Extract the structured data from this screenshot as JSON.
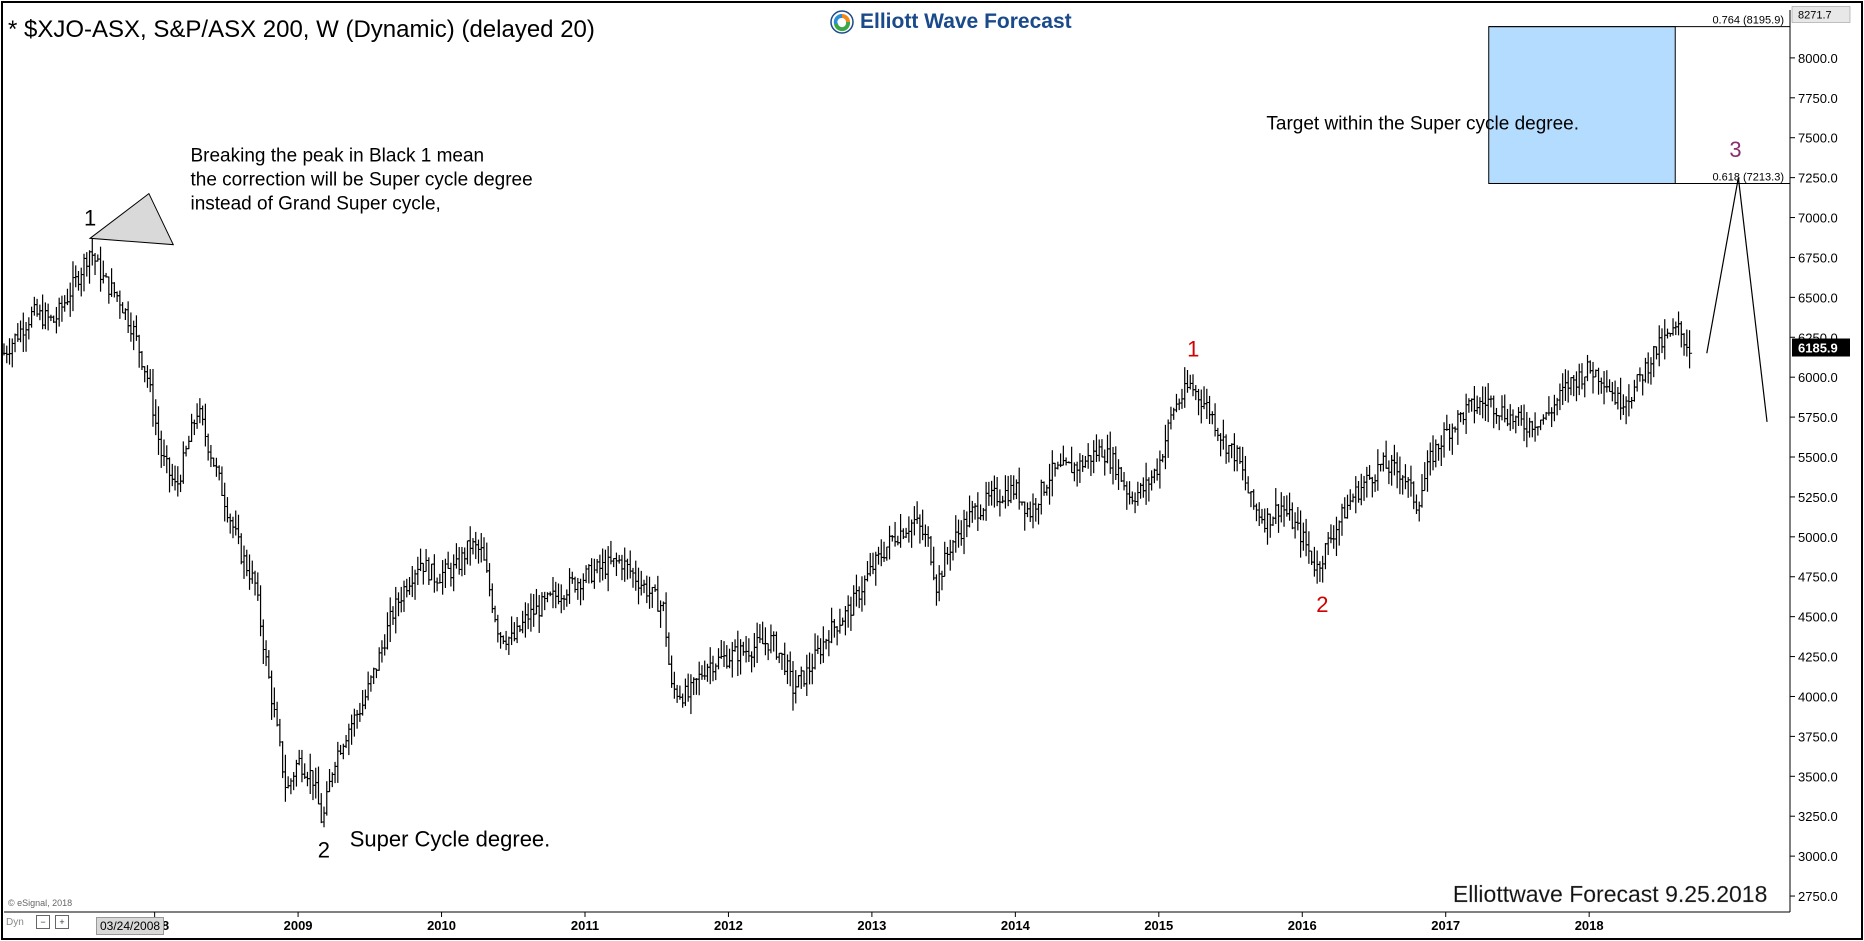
{
  "header": {
    "title": "* $XJO-ASX, S&P/ASX 200, W (Dynamic) (delayed 20)",
    "logo_text": "Elliott Wave Forecast"
  },
  "footer": {
    "copyright": "© eSignal, 2018",
    "dyn_label": "Dyn",
    "crosshair_date": "03/24/2008",
    "watermark": "Elliottwave Forecast 9.25.2018"
  },
  "colors": {
    "background": "#ffffff",
    "bars": "#000000",
    "red_labels": "#d40000",
    "purple_label": "#8b2c6f",
    "target_box": "#b4dcff",
    "logo_blue": "#1a4a8a"
  },
  "chart_data": {
    "type": "ohlc",
    "title": "* $XJO-ASX, S&P/ASX 200, W (Dynamic) (delayed 20)",
    "xlabel": "",
    "ylabel": "",
    "x_tick_labels": [
      "2008",
      "2009",
      "2010",
      "2011",
      "2012",
      "2013",
      "2014",
      "2015",
      "2016",
      "2017",
      "2018"
    ],
    "y_tick_labels": [
      "2750.0",
      "3000.0",
      "3250.0",
      "3500.0",
      "3750.0",
      "4000.0",
      "4250.0",
      "4500.0",
      "4750.0",
      "5000.0",
      "5250.0",
      "5500.0",
      "5750.0",
      "6000.0",
      "6250.0",
      "6500.0",
      "6750.0",
      "7000.0",
      "7250.0",
      "7500.0",
      "7750.0",
      "8000.0"
    ],
    "ylim": [
      2650,
      8300
    ],
    "xlim": [
      2006.95,
      2019.4
    ],
    "grid": false,
    "last_price": "6185.9",
    "top_price": "8271.7",
    "price_path": [
      [
        2006.95,
        6150
      ],
      [
        2007.15,
        6400
      ],
      [
        2007.3,
        6350
      ],
      [
        2007.45,
        6600
      ],
      [
        2007.55,
        6800
      ],
      [
        2007.65,
        6600
      ],
      [
        2007.75,
        6500
      ],
      [
        2007.85,
        6300
      ],
      [
        2007.95,
        6000
      ],
      [
        2008.05,
        5500
      ],
      [
        2008.15,
        5300
      ],
      [
        2008.3,
        5800
      ],
      [
        2008.4,
        5500
      ],
      [
        2008.5,
        5200
      ],
      [
        2008.6,
        4900
      ],
      [
        2008.7,
        4700
      ],
      [
        2008.78,
        4200
      ],
      [
        2008.85,
        3800
      ],
      [
        2008.92,
        3400
      ],
      [
        2009.0,
        3600
      ],
      [
        2009.1,
        3500
      ],
      [
        2009.17,
        3200
      ],
      [
        2009.25,
        3600
      ],
      [
        2009.35,
        3800
      ],
      [
        2009.45,
        3950
      ],
      [
        2009.55,
        4200
      ],
      [
        2009.65,
        4500
      ],
      [
        2009.75,
        4700
      ],
      [
        2009.85,
        4850
      ],
      [
        2009.95,
        4750
      ],
      [
        2010.1,
        4800
      ],
      [
        2010.2,
        4950
      ],
      [
        2010.28,
        4900
      ],
      [
        2010.4,
        4400
      ],
      [
        2010.5,
        4350
      ],
      [
        2010.6,
        4500
      ],
      [
        2010.75,
        4600
      ],
      [
        2010.9,
        4700
      ],
      [
        2011.0,
        4750
      ],
      [
        2011.1,
        4800
      ],
      [
        2011.25,
        4850
      ],
      [
        2011.35,
        4750
      ],
      [
        2011.45,
        4650
      ],
      [
        2011.55,
        4550
      ],
      [
        2011.6,
        4050
      ],
      [
        2011.72,
        4000
      ],
      [
        2011.85,
        4200
      ],
      [
        2012.0,
        4250
      ],
      [
        2012.15,
        4300
      ],
      [
        2012.3,
        4350
      ],
      [
        2012.4,
        4200
      ],
      [
        2012.45,
        4050
      ],
      [
        2012.55,
        4150
      ],
      [
        2012.7,
        4400
      ],
      [
        2012.85,
        4550
      ],
      [
        2013.0,
        4800
      ],
      [
        2013.15,
        5000
      ],
      [
        2013.3,
        5100
      ],
      [
        2013.4,
        4950
      ],
      [
        2013.45,
        4700
      ],
      [
        2013.55,
        4950
      ],
      [
        2013.7,
        5150
      ],
      [
        2013.85,
        5250
      ],
      [
        2014.0,
        5300
      ],
      [
        2014.1,
        5150
      ],
      [
        2014.25,
        5400
      ],
      [
        2014.45,
        5450
      ],
      [
        2014.6,
        5550
      ],
      [
        2014.7,
        5450
      ],
      [
        2014.8,
        5250
      ],
      [
        2014.9,
        5300
      ],
      [
        2015.0,
        5450
      ],
      [
        2015.1,
        5800
      ],
      [
        2015.22,
        5950
      ],
      [
        2015.35,
        5800
      ],
      [
        2015.45,
        5600
      ],
      [
        2015.55,
        5500
      ],
      [
        2015.65,
        5200
      ],
      [
        2015.75,
        5100
      ],
      [
        2015.85,
        5200
      ],
      [
        2016.0,
        5000
      ],
      [
        2016.1,
        4800
      ],
      [
        2016.2,
        5000
      ],
      [
        2016.35,
        5250
      ],
      [
        2016.45,
        5350
      ],
      [
        2016.55,
        5450
      ],
      [
        2016.7,
        5400
      ],
      [
        2016.8,
        5200
      ],
      [
        2016.9,
        5500
      ],
      [
        2017.0,
        5650
      ],
      [
        2017.15,
        5800
      ],
      [
        2017.3,
        5850
      ],
      [
        2017.45,
        5750
      ],
      [
        2017.55,
        5700
      ],
      [
        2017.7,
        5750
      ],
      [
        2017.85,
        5950
      ],
      [
        2018.0,
        6050
      ],
      [
        2018.1,
        6000
      ],
      [
        2018.2,
        5850
      ],
      [
        2018.3,
        5900
      ],
      [
        2018.45,
        6150
      ],
      [
        2018.55,
        6250
      ],
      [
        2018.62,
        6300
      ],
      [
        2018.7,
        6185
      ]
    ],
    "projection": [
      [
        2018.82,
        6150
      ],
      [
        2019.04,
        7250
      ],
      [
        2019.24,
        5720
      ]
    ],
    "target_zone": {
      "x_range": [
        2017.3,
        2018.6
      ],
      "y_range": [
        7213.3,
        8195.9
      ],
      "fib_labels": [
        "0.764 (8195.9)",
        "0.618 (7213.3)"
      ]
    },
    "wedge": [
      [
        2007.55,
        6870
      ],
      [
        2007.96,
        7150
      ],
      [
        2008.13,
        6830
      ]
    ],
    "annotations": [
      {
        "text": "1",
        "x": 2007.55,
        "y": 6950,
        "color": "#000000"
      },
      {
        "text": "2",
        "x": 2009.18,
        "y": 2990,
        "color": "#000000"
      },
      {
        "text": "1",
        "x": 2015.24,
        "y": 6130,
        "color": "#d40000"
      },
      {
        "text": "2",
        "x": 2016.14,
        "y": 4530,
        "color": "#d40000"
      },
      {
        "text": "3",
        "x": 2019.02,
        "y": 7380,
        "color": "#8b2c6f"
      },
      {
        "text": "Super Cycle degree.",
        "x": 2009.36,
        "y": 3060,
        "color": "#000000"
      },
      {
        "text": "Breaking the peak in Black 1 mean",
        "x": 2008.25,
        "y": 7350,
        "color": "#000000"
      },
      {
        "text": "the correction will be Super cycle degree",
        "x": 2008.25,
        "y": 7200,
        "color": "#000000"
      },
      {
        "text": "instead  of Grand Super cycle,",
        "x": 2008.25,
        "y": 7050,
        "color": "#000000"
      },
      {
        "text": "Target within the Super cycle degree.",
        "x": 2015.75,
        "y": 7550,
        "color": "#000000"
      }
    ]
  }
}
